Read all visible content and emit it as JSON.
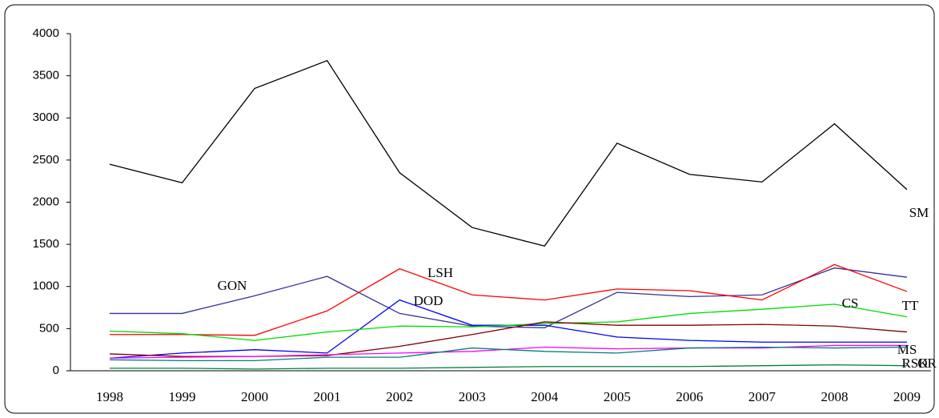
{
  "chart_data": {
    "type": "line",
    "x": [
      1998,
      1999,
      2000,
      2001,
      2002,
      2003,
      2004,
      2005,
      2006,
      2007,
      2008,
      2009
    ],
    "ylim": [
      0,
      4000
    ],
    "yticks": [
      0,
      500,
      1000,
      1500,
      2000,
      2500,
      3000,
      3500,
      4000
    ],
    "series": [
      {
        "name": "SM",
        "color": "#000000",
        "values": [
          2450,
          2230,
          3350,
          3680,
          2350,
          1700,
          1480,
          2700,
          2330,
          2240,
          2930,
          2150
        ]
      },
      {
        "name": "GON",
        "color": "#333399",
        "values": [
          680,
          680,
          890,
          1120,
          680,
          530,
          510,
          930,
          880,
          900,
          1220,
          1110
        ]
      },
      {
        "name": "LSH",
        "color": "#ff0000",
        "values": [
          430,
          430,
          420,
          710,
          1210,
          900,
          840,
          970,
          950,
          840,
          1260,
          940
        ]
      },
      {
        "name": "DOD",
        "color": "#0000ff",
        "values": [
          150,
          210,
          250,
          210,
          840,
          540,
          540,
          400,
          360,
          340,
          340,
          340
        ]
      },
      {
        "name": "CS",
        "color": "#00dd00",
        "values": [
          470,
          440,
          360,
          460,
          530,
          520,
          560,
          580,
          680,
          730,
          790,
          640
        ]
      },
      {
        "name": "TT",
        "color": "#800000",
        "values": [
          200,
          170,
          170,
          180,
          290,
          430,
          580,
          540,
          540,
          550,
          530,
          460
        ]
      },
      {
        "name": "MS",
        "color": "#ff00ff",
        "values": [
          150,
          160,
          170,
          190,
          210,
          230,
          280,
          260,
          270,
          270,
          300,
          300
        ]
      },
      {
        "name": "OR",
        "color": "#008080",
        "values": [
          130,
          120,
          120,
          160,
          160,
          270,
          230,
          210,
          270,
          280,
          270,
          280
        ]
      },
      {
        "name": "RSK",
        "color": "#008040",
        "values": [
          30,
          30,
          20,
          30,
          30,
          40,
          50,
          50,
          50,
          60,
          70,
          60
        ]
      }
    ]
  }
}
